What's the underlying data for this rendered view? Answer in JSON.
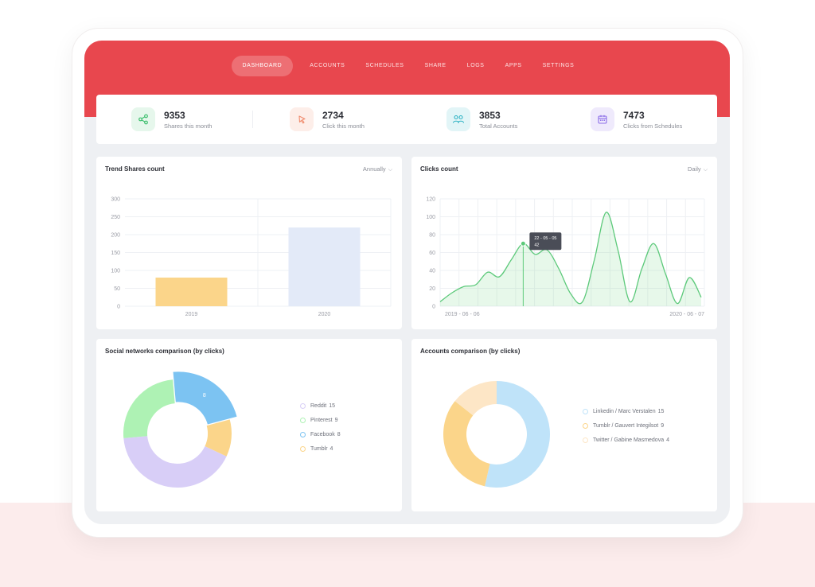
{
  "nav": {
    "items": [
      {
        "label": "DASHBOARD",
        "active": true
      },
      {
        "label": "ACCOUNTS",
        "active": false
      },
      {
        "label": "SCHEDULES",
        "active": false
      },
      {
        "label": "SHARE",
        "active": false
      },
      {
        "label": "LOGS",
        "active": false
      },
      {
        "label": "APPS",
        "active": false
      },
      {
        "label": "SETTINGS",
        "active": false
      }
    ]
  },
  "stats": [
    {
      "value": "9353",
      "label": "Shares this month",
      "icon": "share-icon",
      "color": "#3dbf6e",
      "bg": "#e6f7ec"
    },
    {
      "value": "2734",
      "label": "Click this month",
      "icon": "cursor-click-icon",
      "color": "#f08c6e",
      "bg": "#fdeee9"
    },
    {
      "value": "3853",
      "label": "Total Accounts",
      "icon": "users-icon",
      "color": "#2fb3c4",
      "bg": "#e2f5f7"
    },
    {
      "value": "7473",
      "label": "Clicks from Schedules",
      "icon": "calendar-icon",
      "color": "#8c6ee8",
      "bg": "#efeafc"
    }
  ],
  "trend_card": {
    "title": "Trend Shares count",
    "dropdown": "Annually"
  },
  "clicks_card": {
    "title": "Clicks count",
    "dropdown": "Daily"
  },
  "social_card": {
    "title": "Social networks comparison (by clicks)"
  },
  "accounts_card": {
    "title": "Accounts comparison (by clicks)"
  },
  "colors": {
    "accent": "#e8474e",
    "bar_2019": "#fbd58a",
    "bar_2020": "#e3eaf8",
    "line": "#5cc97a"
  },
  "chart_data": [
    {
      "type": "bar",
      "title": "Trend Shares count",
      "categories": [
        "2019",
        "2020"
      ],
      "values": [
        80,
        220
      ],
      "yticks": [
        0,
        50,
        100,
        150,
        200,
        250,
        300
      ],
      "ylim": [
        0,
        300
      ],
      "grid": true
    },
    {
      "type": "area",
      "title": "Clicks count",
      "x_start": "2019 - 06 - 06",
      "x_end": "2020 - 06 - 07",
      "y": [
        5,
        15,
        22,
        24,
        38,
        33,
        52,
        70,
        58,
        63,
        42,
        14,
        5,
        52,
        105,
        62,
        5,
        42,
        70,
        36,
        3,
        32,
        10
      ],
      "yticks": [
        0,
        20,
        40,
        60,
        80,
        100,
        120
      ],
      "ylim": [
        0,
        120
      ],
      "tooltip": {
        "date": "22 - 05 - 05",
        "value": "42"
      },
      "grid": true
    },
    {
      "type": "pie",
      "title": "Social networks comparison (by clicks)",
      "slices": [
        {
          "label": "Reddit",
          "value": 15,
          "color": "#d8cef7"
        },
        {
          "label": "Pinterest",
          "value": 9,
          "color": "#aef2b4"
        },
        {
          "label": "Facebook",
          "value": 8,
          "color": "#7cc3f2"
        },
        {
          "label": "Tumblr",
          "value": 4,
          "color": "#fbd58a"
        }
      ],
      "highlight_label": "8"
    },
    {
      "type": "pie",
      "title": "Accounts comparison (by clicks)",
      "slices": [
        {
          "label": "Linkedin / Marc Verstalen",
          "value": 15,
          "color": "#bfe3f9"
        },
        {
          "label": "Tumblr / Gauvert Integilsot",
          "value": 9,
          "color": "#fbd58a"
        },
        {
          "label": "Twitter / Gabine Masmedova",
          "value": 4,
          "color": "#fde6c6"
        }
      ]
    }
  ]
}
